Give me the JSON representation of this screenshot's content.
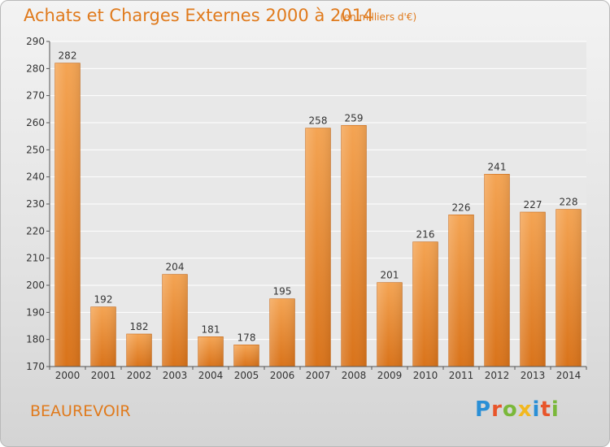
{
  "title": "Achats et Charges Externes 2000 à 2014",
  "subtitle": "(en milliers d'€)",
  "commune": "BEAUREVOIR",
  "logo": {
    "letters": [
      "P",
      "r",
      "o",
      "x",
      "i",
      "t",
      "i"
    ],
    "colors": [
      "#2a8fd6",
      "#e8552a",
      "#7ab83a",
      "#f2b81f",
      "#2a8fd6",
      "#e8552a",
      "#7ab83a"
    ]
  },
  "chart_data": {
    "type": "bar",
    "title": "Achats et Charges Externes 2000 à 2014",
    "xlabel": "",
    "ylabel": "",
    "categories": [
      "2000",
      "2001",
      "2002",
      "2003",
      "2004",
      "2005",
      "2006",
      "2007",
      "2008",
      "2009",
      "2010",
      "2011",
      "2012",
      "2013",
      "2014"
    ],
    "values": [
      282,
      192,
      182,
      204,
      181,
      178,
      195,
      258,
      259,
      201,
      216,
      226,
      241,
      227,
      228
    ],
    "ylim": [
      170,
      290
    ],
    "yticks": [
      170,
      180,
      190,
      200,
      210,
      220,
      230,
      240,
      250,
      260,
      270,
      280,
      290
    ],
    "grid": true,
    "bar_color": "#e8861f"
  }
}
